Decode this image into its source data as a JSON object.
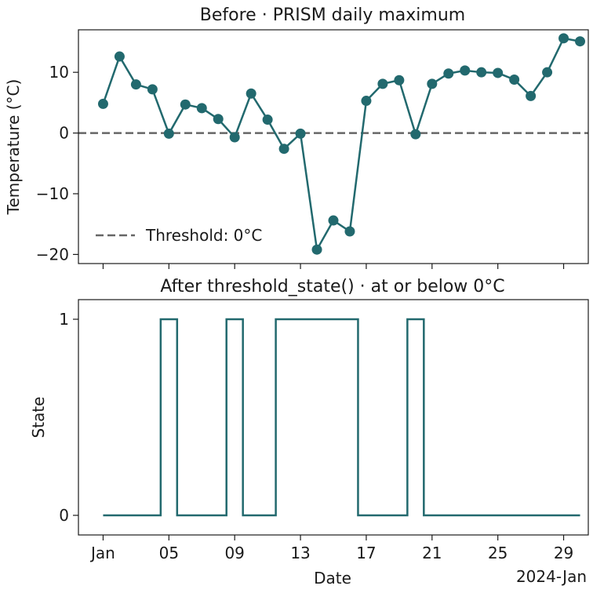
{
  "chart_data": [
    {
      "type": "line",
      "title": "Before · PRISM daily maximum",
      "ylabel": "Temperature (°C)",
      "xlabel": "",
      "x": [
        "2024-01-01",
        "2024-01-02",
        "2024-01-03",
        "2024-01-04",
        "2024-01-05",
        "2024-01-06",
        "2024-01-07",
        "2024-01-08",
        "2024-01-09",
        "2024-01-10",
        "2024-01-11",
        "2024-01-12",
        "2024-01-13",
        "2024-01-14",
        "2024-01-15",
        "2024-01-16",
        "2024-01-17",
        "2024-01-18",
        "2024-01-19",
        "2024-01-20",
        "2024-01-21",
        "2024-01-22",
        "2024-01-23",
        "2024-01-24",
        "2024-01-25",
        "2024-01-26",
        "2024-01-27",
        "2024-01-28",
        "2024-01-29",
        "2024-01-30"
      ],
      "series": [
        {
          "values": [
            4.8,
            12.6,
            8.0,
            7.2,
            -0.1,
            4.7,
            4.1,
            2.3,
            -0.7,
            6.5,
            2.2,
            -2.6,
            -0.1,
            -19.2,
            -14.4,
            -16.2,
            5.3,
            8.1,
            8.7,
            -0.2,
            8.1,
            9.8,
            10.3,
            10.0,
            9.9,
            8.8,
            6.1,
            10.0,
            15.6,
            15.1
          ],
          "color": "#22696e"
        }
      ],
      "threshold": {
        "value": 0,
        "label": "Threshold: 0°C",
        "color": "#666666"
      },
      "ylim": [
        -21.5,
        17
      ],
      "yticks": [
        -20,
        -10,
        0,
        10
      ],
      "yticklabels": [
        "−20",
        "−10",
        "0",
        "10"
      ],
      "legend": "lower-left",
      "grid": false
    },
    {
      "type": "line",
      "title": "After threshold_state() · at or below 0°C",
      "ylabel": "State",
      "xlabel": "Date",
      "x": [
        "2024-01-01",
        "2024-01-02",
        "2024-01-03",
        "2024-01-04",
        "2024-01-05",
        "2024-01-06",
        "2024-01-07",
        "2024-01-08",
        "2024-01-09",
        "2024-01-10",
        "2024-01-11",
        "2024-01-12",
        "2024-01-13",
        "2024-01-14",
        "2024-01-15",
        "2024-01-16",
        "2024-01-17",
        "2024-01-18",
        "2024-01-19",
        "2024-01-20",
        "2024-01-21",
        "2024-01-22",
        "2024-01-23",
        "2024-01-24",
        "2024-01-25",
        "2024-01-26",
        "2024-01-27",
        "2024-01-28",
        "2024-01-29",
        "2024-01-30"
      ],
      "series": [
        {
          "values": [
            0,
            0,
            0,
            0,
            1,
            0,
            0,
            0,
            1,
            0,
            0,
            1,
            1,
            1,
            1,
            1,
            0,
            0,
            0,
            1,
            0,
            0,
            0,
            0,
            0,
            0,
            0,
            0,
            0,
            0
          ],
          "color": "#22696e",
          "step": "mid"
        }
      ],
      "ylim": [
        -0.1,
        1.1
      ],
      "yticks": [
        0,
        1
      ],
      "yticklabels": [
        "0",
        "1"
      ],
      "xlim": [
        "2023-12-30 12:00",
        "2024-01-30 12:00"
      ],
      "xticklabels": [
        "Jan",
        "05",
        "09",
        "13",
        "17",
        "21",
        "25",
        "29"
      ],
      "xtick_dates": [
        "2024-01-01",
        "2024-01-05",
        "2024-01-09",
        "2024-01-13",
        "2024-01-17",
        "2024-01-21",
        "2024-01-25",
        "2024-01-29"
      ],
      "x_offset_label": "2024-Jan",
      "grid": false
    }
  ]
}
